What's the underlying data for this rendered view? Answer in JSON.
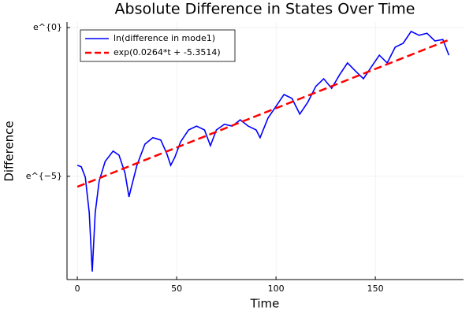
{
  "chart_data": {
    "type": "line",
    "title": "Absolute Difference in States Over Time",
    "x_label": "Time",
    "y_label": "Difference",
    "log_scale": true,
    "grid": true,
    "legend": "top-left",
    "xlim": [
      -5.2,
      194.4
    ],
    "xticks": [
      0,
      50,
      100,
      150
    ],
    "ylim": [
      0.0002097,
      1.203
    ],
    "yticks": [
      {
        "value": 1,
        "label": "e^{0}"
      },
      {
        "value": 0.006738,
        "label": "e^{−5}"
      }
    ],
    "series": [
      {
        "name": "ln(difference in mode1)",
        "color": "#0000ff",
        "dash": "solid",
        "x": [
          0,
          2,
          4,
          6,
          7.5,
          9,
          11,
          14,
          18,
          21,
          24,
          26,
          27,
          30,
          34,
          38,
          42,
          45,
          47,
          49,
          52,
          56,
          60,
          64,
          67,
          70,
          74,
          78,
          82,
          86,
          90,
          92,
          96,
          100,
          104,
          108,
          112,
          116,
          120,
          124,
          128,
          132,
          136,
          140,
          144,
          148,
          152,
          156,
          160,
          164,
          168,
          172,
          176,
          180,
          184,
          187
        ],
        "values": [
          0.009755,
          0.009279,
          0.006539,
          0.001989,
          0.0002747,
          0.001989,
          0.005741,
          0.01111,
          0.01576,
          0.01371,
          0.007522,
          0.00338,
          0.004427,
          0.009755,
          0.01984,
          0.02472,
          0.02282,
          0.01455,
          0.009755,
          0.01265,
          0.02149,
          0.03206,
          0.03651,
          0.03206,
          0.01887,
          0.03206,
          0.03877,
          0.03651,
          0.04505,
          0.03651,
          0.03206,
          0.02472,
          0.04783,
          0.07065,
          0.1054,
          0.09255,
          0.05448,
          0.08127,
          0.1381,
          0.1791,
          0.13,
          0.2039,
          0.3042,
          0.2322,
          0.1791,
          0.2671,
          0.3946,
          0.3042,
          0.5169,
          0.5886,
          0.8781,
          0.7711,
          0.827,
          0.6376,
          0.6703,
          0.3946
        ]
      },
      {
        "name": "exp(0.0264*t + -5.3514)",
        "color": "#ff0000",
        "dash": "dashed",
        "x": [
          0,
          188
        ],
        "values": [
          0.004743,
          0.6784
        ]
      }
    ]
  }
}
